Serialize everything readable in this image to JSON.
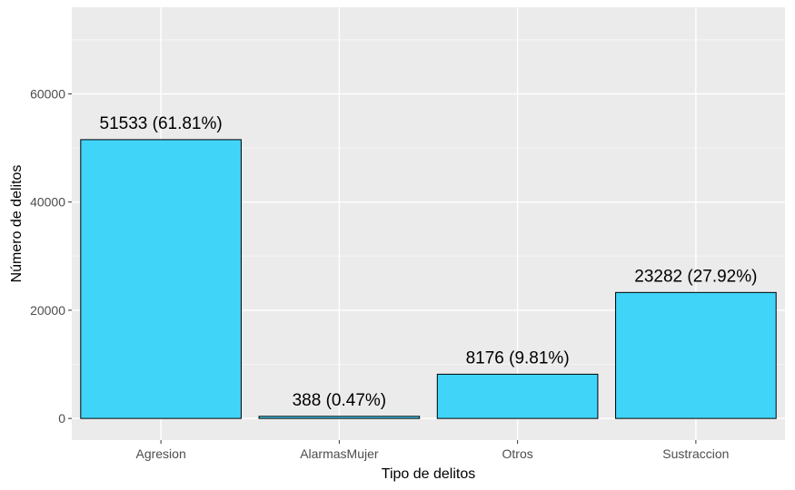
{
  "chart_data": {
    "type": "bar",
    "title": "",
    "xlabel": "Tipo de delitos",
    "ylabel": "Número de delitos",
    "categories": [
      "Agresion",
      "AlarmasMujer",
      "Otros",
      "Sustraccion"
    ],
    "values": [
      51533,
      388,
      8176,
      23282
    ],
    "data_labels": [
      "51533 (61.81%)",
      "388 (0.47%)",
      "8176 (9.81%)",
      "23282 (27.92%)"
    ],
    "yticks": [
      0,
      20000,
      40000,
      60000
    ],
    "ylim": [
      -4000,
      76000
    ],
    "grid": true,
    "legend": "none",
    "colors": {
      "bar_fill": "#40D4F9",
      "bar_stroke": "#000000",
      "panel_bg": "#EBEBEB",
      "grid_major": "#FFFFFF",
      "grid_minor": "#F5F5F5"
    }
  }
}
